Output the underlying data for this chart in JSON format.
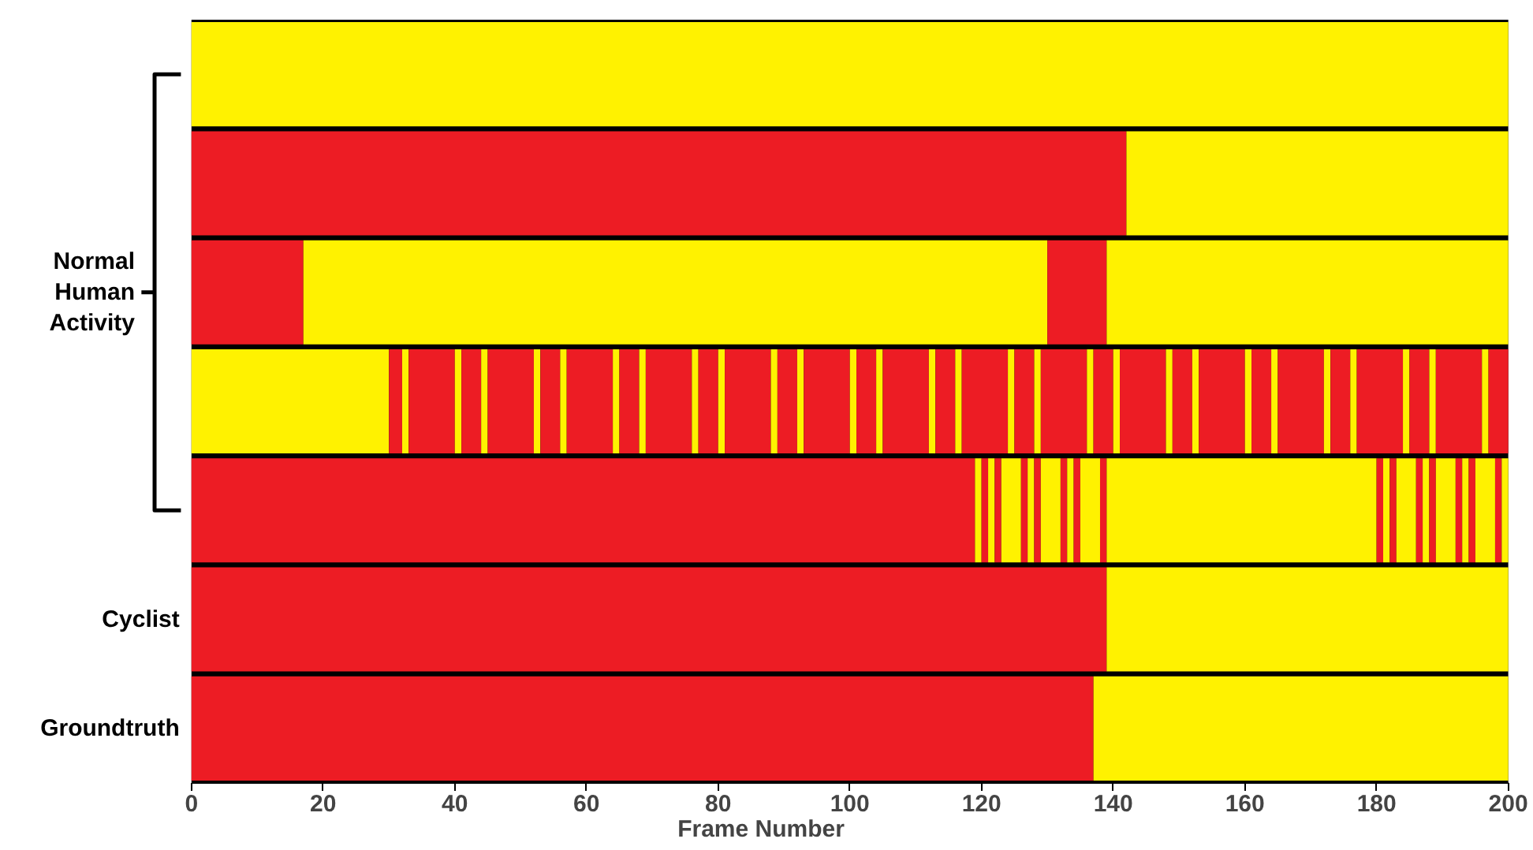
{
  "chart_data": {
    "type": "bar",
    "orientation": "horizontal",
    "stacked": true,
    "categories": [
      null,
      null,
      null,
      null,
      null,
      "Cyclist",
      "Groundtruth"
    ],
    "xlabel": "Frame Number",
    "xlim": [
      0,
      200
    ],
    "xticks": [
      0,
      20,
      40,
      60,
      80,
      100,
      120,
      140,
      160,
      180,
      200
    ],
    "annotations": [
      "Normal Human Activity"
    ],
    "series": [
      {
        "values": [
          200,
          142,
          17,
          30,
          119,
          139,
          137
        ],
        "colors": [
          "#fff200",
          "#ed1c24",
          "#ed1c24",
          "#fff200",
          "#ed1c24",
          "#ed1c24",
          "#ed1c24"
        ]
      },
      {
        "values": [
          null,
          58,
          113,
          2,
          1,
          61,
          63
        ],
        "colors": [
          null,
          "#fff200",
          "#fff200",
          "#ed1c24",
          "#fff200",
          "#fff200",
          "#fff200"
        ]
      },
      {
        "values": [
          null,
          null,
          9,
          1,
          1,
          null,
          null
        ],
        "colors": [
          null,
          null,
          "#ed1c24",
          "#fff200",
          "#ed1c24",
          null,
          null
        ]
      },
      {
        "values": [
          null,
          null,
          61,
          7,
          1,
          null,
          null
        ],
        "colors": [
          null,
          null,
          "#fff200",
          "#ed1c24",
          "#fff200",
          null,
          null
        ]
      },
      {
        "values": [
          null,
          null,
          null,
          1,
          1,
          null,
          null
        ],
        "colors": [
          null,
          null,
          null,
          "#fff200",
          "#ed1c24",
          null,
          null
        ]
      },
      {
        "values": [
          null,
          null,
          null,
          3,
          3,
          null,
          null
        ],
        "colors": [
          null,
          null,
          null,
          "#ed1c24",
          "#fff200",
          null,
          null
        ]
      },
      {
        "values": [
          null,
          null,
          null,
          1,
          1,
          null,
          null
        ],
        "colors": [
          null,
          null,
          null,
          "#fff200",
          "#ed1c24",
          null,
          null
        ]
      },
      {
        "values": [
          null,
          null,
          null,
          7,
          1,
          null,
          null
        ],
        "colors": [
          null,
          null,
          null,
          "#ed1c24",
          "#fff200",
          null,
          null
        ]
      },
      {
        "values": [
          null,
          null,
          null,
          1,
          1,
          null,
          null
        ],
        "colors": [
          null,
          null,
          null,
          "#fff200",
          "#ed1c24",
          null,
          null
        ]
      },
      {
        "values": [
          null,
          null,
          null,
          3,
          3,
          null,
          null
        ],
        "colors": [
          null,
          null,
          null,
          "#ed1c24",
          "#fff200",
          null,
          null
        ]
      },
      {
        "values": [
          null,
          null,
          null,
          1,
          1,
          null,
          null
        ],
        "colors": [
          null,
          null,
          null,
          "#fff200",
          "#ed1c24",
          null,
          null
        ]
      },
      {
        "values": [
          null,
          null,
          null,
          7,
          1,
          null,
          null
        ],
        "colors": [
          null,
          null,
          null,
          "#ed1c24",
          "#fff200",
          null,
          null
        ]
      },
      {
        "values": [
          null,
          null,
          null,
          1,
          1,
          null,
          null
        ],
        "colors": [
          null,
          null,
          null,
          "#fff200",
          "#ed1c24",
          null,
          null
        ]
      },
      {
        "values": [
          null,
          null,
          null,
          3,
          3,
          null,
          null
        ],
        "colors": [
          null,
          null,
          null,
          "#ed1c24",
          "#fff200",
          null,
          null
        ]
      },
      {
        "values": [
          null,
          null,
          null,
          1,
          1,
          null,
          null
        ],
        "colors": [
          null,
          null,
          null,
          "#fff200",
          "#ed1c24",
          null,
          null
        ]
      },
      {
        "values": [
          null,
          null,
          null,
          7,
          41,
          null,
          null
        ],
        "colors": [
          null,
          null,
          null,
          "#ed1c24",
          "#fff200",
          null,
          null
        ]
      },
      {
        "values": [
          null,
          null,
          null,
          1,
          1,
          null,
          null
        ],
        "colors": [
          null,
          null,
          null,
          "#fff200",
          "#ed1c24",
          null,
          null
        ]
      },
      {
        "values": [
          null,
          null,
          null,
          3,
          1,
          null,
          null
        ],
        "colors": [
          null,
          null,
          null,
          "#ed1c24",
          "#fff200",
          null,
          null
        ]
      },
      {
        "values": [
          null,
          null,
          null,
          1,
          1,
          null,
          null
        ],
        "colors": [
          null,
          null,
          null,
          "#fff200",
          "#ed1c24",
          null,
          null
        ]
      },
      {
        "values": [
          null,
          null,
          null,
          7,
          3,
          null,
          null
        ],
        "colors": [
          null,
          null,
          null,
          "#ed1c24",
          "#fff200",
          null,
          null
        ]
      },
      {
        "values": [
          null,
          null,
          null,
          1,
          1,
          null,
          null
        ],
        "colors": [
          null,
          null,
          null,
          "#fff200",
          "#ed1c24",
          null,
          null
        ]
      },
      {
        "values": [
          null,
          null,
          null,
          3,
          1,
          null,
          null
        ],
        "colors": [
          null,
          null,
          null,
          "#ed1c24",
          "#fff200",
          null,
          null
        ]
      },
      {
        "values": [
          null,
          null,
          null,
          1,
          1,
          null,
          null
        ],
        "colors": [
          null,
          null,
          null,
          "#fff200",
          "#ed1c24",
          null,
          null
        ]
      },
      {
        "values": [
          null,
          null,
          null,
          7,
          3,
          null,
          null
        ],
        "colors": [
          null,
          null,
          null,
          "#ed1c24",
          "#fff200",
          null,
          null
        ]
      },
      {
        "values": [
          null,
          null,
          null,
          1,
          1,
          null,
          null
        ],
        "colors": [
          null,
          null,
          null,
          "#fff200",
          "#ed1c24",
          null,
          null
        ]
      },
      {
        "values": [
          null,
          null,
          null,
          3,
          1,
          null,
          null
        ],
        "colors": [
          null,
          null,
          null,
          "#ed1c24",
          "#fff200",
          null,
          null
        ]
      },
      {
        "values": [
          null,
          null,
          null,
          1,
          1,
          null,
          null
        ],
        "colors": [
          null,
          null,
          null,
          "#fff200",
          "#ed1c24",
          null,
          null
        ]
      },
      {
        "values": [
          null,
          null,
          null,
          7,
          3,
          null,
          null
        ],
        "colors": [
          null,
          null,
          null,
          "#ed1c24",
          "#fff200",
          null,
          null
        ]
      },
      {
        "values": [
          null,
          null,
          null,
          1,
          1,
          null,
          null
        ],
        "colors": [
          null,
          null,
          null,
          "#fff200",
          "#ed1c24",
          null,
          null
        ]
      },
      {
        "values": [
          null,
          null,
          null,
          3,
          1,
          null,
          null
        ],
        "colors": [
          null,
          null,
          null,
          "#ed1c24",
          "#fff200",
          null,
          null
        ]
      },
      {
        "values": [
          null,
          null,
          null,
          1,
          null,
          null,
          null
        ],
        "colors": [
          null,
          null,
          null,
          "#fff200",
          null,
          null,
          null
        ]
      },
      {
        "values": [
          null,
          null,
          null,
          7,
          null,
          null,
          null
        ],
        "colors": [
          null,
          null,
          null,
          "#ed1c24",
          null,
          null,
          null
        ]
      },
      {
        "values": [
          null,
          null,
          null,
          1,
          null,
          null,
          null
        ],
        "colors": [
          null,
          null,
          null,
          "#fff200",
          null,
          null,
          null
        ]
      },
      {
        "values": [
          null,
          null,
          null,
          3,
          null,
          null,
          null
        ],
        "colors": [
          null,
          null,
          null,
          "#ed1c24",
          null,
          null,
          null
        ]
      },
      {
        "values": [
          null,
          null,
          null,
          1,
          null,
          null,
          null
        ],
        "colors": [
          null,
          null,
          null,
          "#fff200",
          null,
          null,
          null
        ]
      },
      {
        "values": [
          null,
          null,
          null,
          7,
          null,
          null,
          null
        ],
        "colors": [
          null,
          null,
          null,
          "#ed1c24",
          null,
          null,
          null
        ]
      },
      {
        "values": [
          null,
          null,
          null,
          1,
          null,
          null,
          null
        ],
        "colors": [
          null,
          null,
          null,
          "#fff200",
          null,
          null,
          null
        ]
      },
      {
        "values": [
          null,
          null,
          null,
          3,
          null,
          null,
          null
        ],
        "colors": [
          null,
          null,
          null,
          "#ed1c24",
          null,
          null,
          null
        ]
      },
      {
        "values": [
          null,
          null,
          null,
          1,
          null,
          null,
          null
        ],
        "colors": [
          null,
          null,
          null,
          "#fff200",
          null,
          null,
          null
        ]
      },
      {
        "values": [
          null,
          null,
          null,
          7,
          null,
          null,
          null
        ],
        "colors": [
          null,
          null,
          null,
          "#ed1c24",
          null,
          null,
          null
        ]
      },
      {
        "values": [
          null,
          null,
          null,
          1,
          null,
          null,
          null
        ],
        "colors": [
          null,
          null,
          null,
          "#fff200",
          null,
          null,
          null
        ]
      },
      {
        "values": [
          null,
          null,
          null,
          3,
          null,
          null,
          null
        ],
        "colors": [
          null,
          null,
          null,
          "#ed1c24",
          null,
          null,
          null
        ]
      },
      {
        "values": [
          null,
          null,
          null,
          1,
          null,
          null,
          null
        ],
        "colors": [
          null,
          null,
          null,
          "#fff200",
          null,
          null,
          null
        ]
      },
      {
        "values": [
          null,
          null,
          null,
          7,
          null,
          null,
          null
        ],
        "colors": [
          null,
          null,
          null,
          "#ed1c24",
          null,
          null,
          null
        ]
      },
      {
        "values": [
          null,
          null,
          null,
          1,
          null,
          null,
          null
        ],
        "colors": [
          null,
          null,
          null,
          "#fff200",
          null,
          null,
          null
        ]
      },
      {
        "values": [
          null,
          null,
          null,
          3,
          null,
          null,
          null
        ],
        "colors": [
          null,
          null,
          null,
          "#ed1c24",
          null,
          null,
          null
        ]
      },
      {
        "values": [
          null,
          null,
          null,
          1,
          null,
          null,
          null
        ],
        "colors": [
          null,
          null,
          null,
          "#fff200",
          null,
          null,
          null
        ]
      },
      {
        "values": [
          null,
          null,
          null,
          7,
          null,
          null,
          null
        ],
        "colors": [
          null,
          null,
          null,
          "#ed1c24",
          null,
          null,
          null
        ]
      },
      {
        "values": [
          null,
          null,
          null,
          1,
          null,
          null,
          null
        ],
        "colors": [
          null,
          null,
          null,
          "#fff200",
          null,
          null,
          null
        ]
      },
      {
        "values": [
          null,
          null,
          null,
          3,
          null,
          null,
          null
        ],
        "colors": [
          null,
          null,
          null,
          "#ed1c24",
          null,
          null,
          null
        ]
      },
      {
        "values": [
          null,
          null,
          null,
          1,
          null,
          null,
          null
        ],
        "colors": [
          null,
          null,
          null,
          "#fff200",
          null,
          null,
          null
        ]
      },
      {
        "values": [
          null,
          null,
          null,
          7,
          null,
          null,
          null
        ],
        "colors": [
          null,
          null,
          null,
          "#ed1c24",
          null,
          null,
          null
        ]
      },
      {
        "values": [
          null,
          null,
          null,
          1,
          null,
          null,
          null
        ],
        "colors": [
          null,
          null,
          null,
          "#fff200",
          null,
          null,
          null
        ]
      },
      {
        "values": [
          null,
          null,
          null,
          3,
          null,
          null,
          null
        ],
        "colors": [
          null,
          null,
          null,
          "#ed1c24",
          null,
          null,
          null
        ]
      },
      {
        "values": [
          null,
          null,
          null,
          1,
          null,
          null,
          null
        ],
        "colors": [
          null,
          null,
          null,
          "#fff200",
          null,
          null,
          null
        ]
      },
      {
        "values": [
          null,
          null,
          null,
          7,
          null,
          null,
          null
        ],
        "colors": [
          null,
          null,
          null,
          "#ed1c24",
          null,
          null,
          null
        ]
      },
      {
        "values": [
          null,
          null,
          null,
          1,
          null,
          null,
          null
        ],
        "colors": [
          null,
          null,
          null,
          "#fff200",
          null,
          null,
          null
        ]
      },
      {
        "values": [
          null,
          null,
          null,
          3,
          null,
          null,
          null
        ],
        "colors": [
          null,
          null,
          null,
          "#ed1c24",
          null,
          null,
          null
        ]
      }
    ]
  }
}
